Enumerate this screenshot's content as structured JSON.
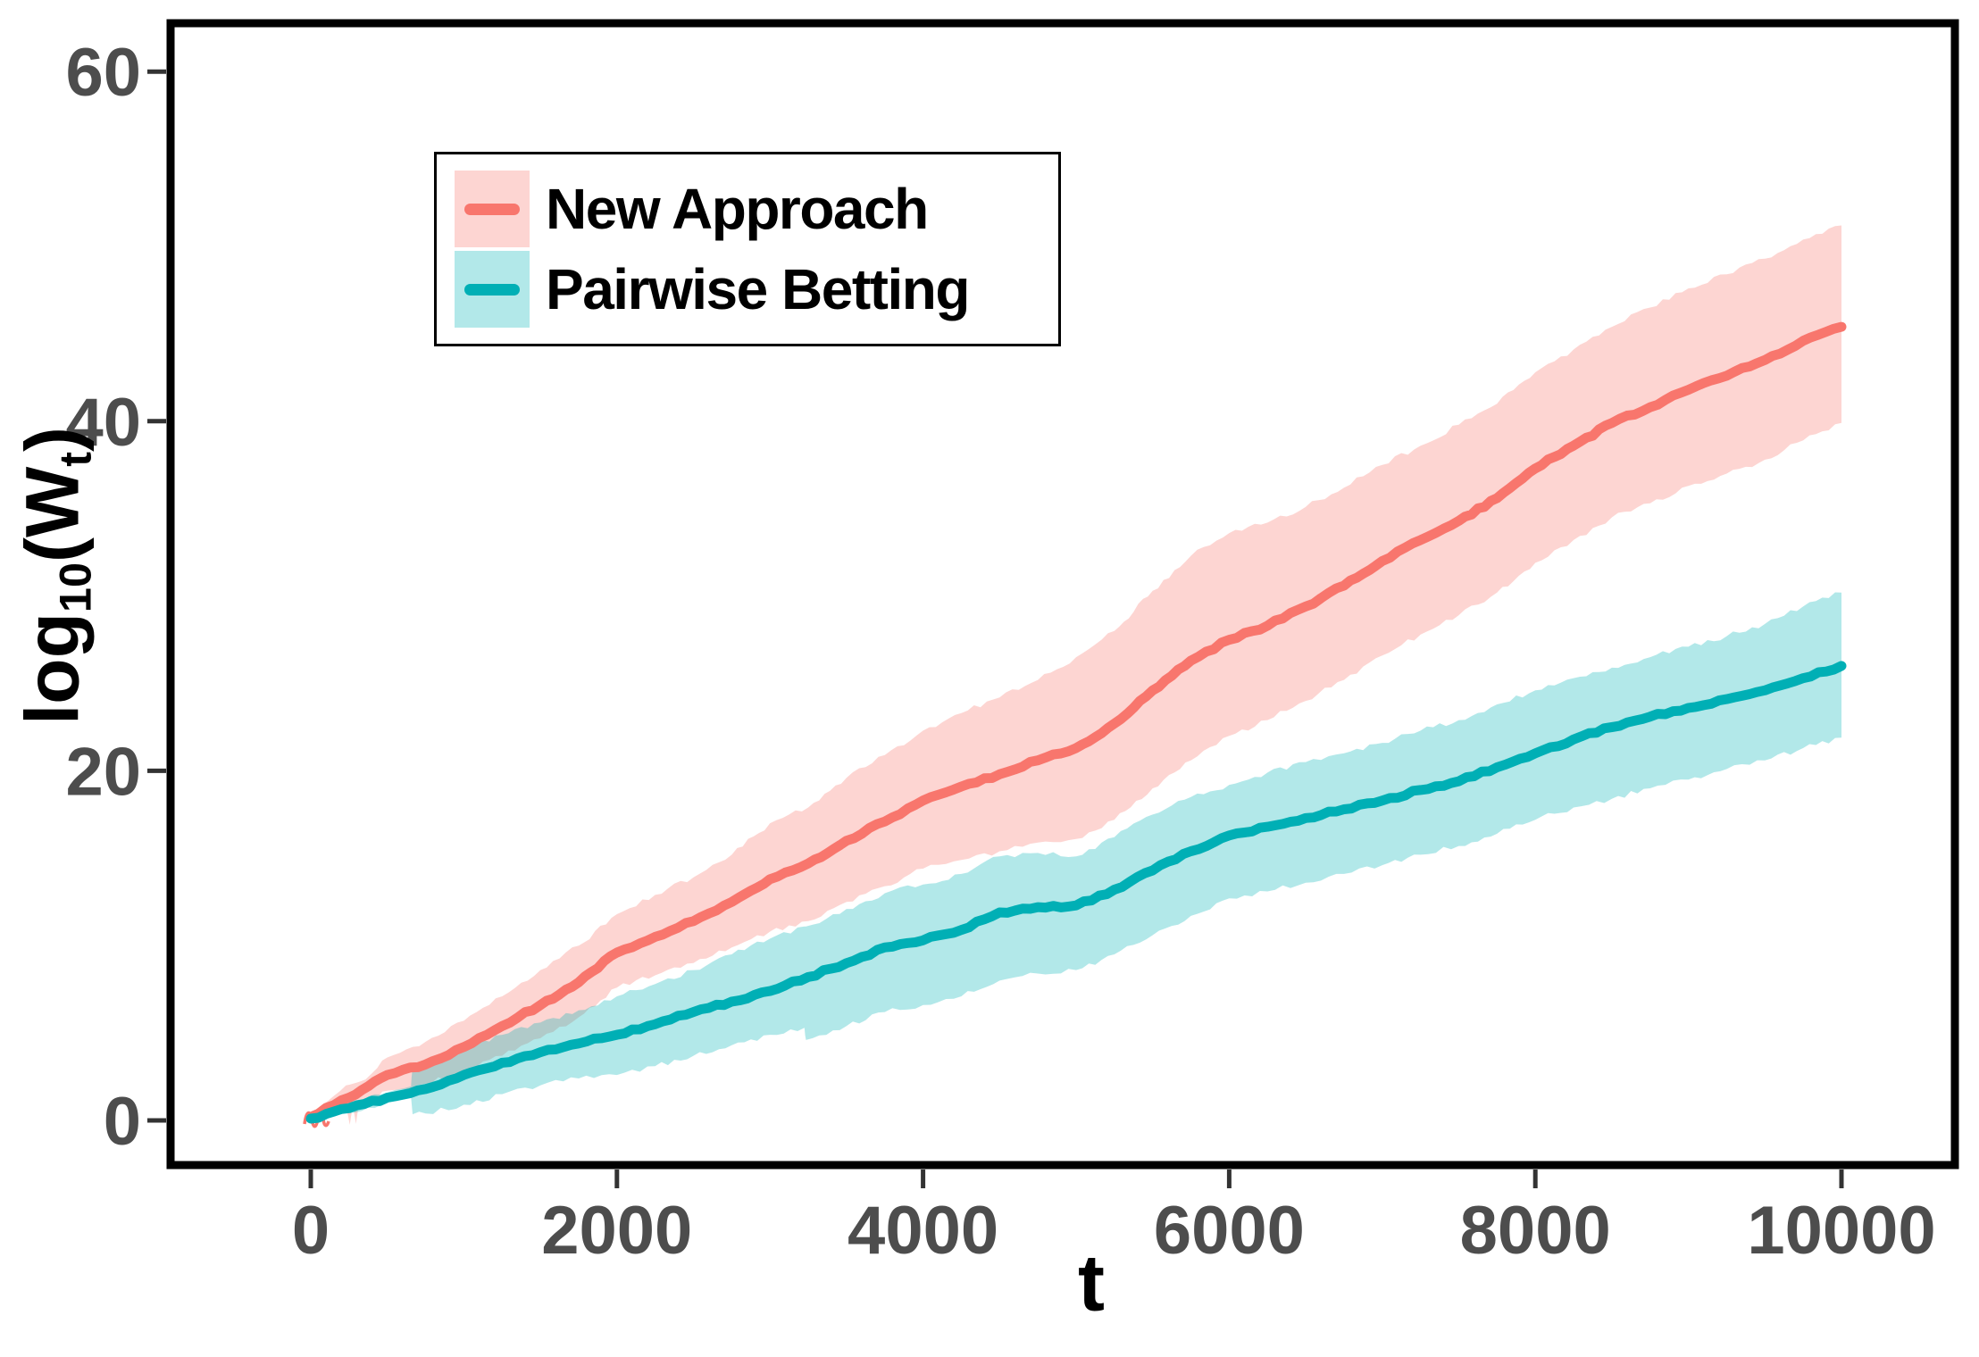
{
  "figure": {
    "background": "#ffffff"
  },
  "axes": {
    "x": {
      "title": "t",
      "tick_labels": [
        "0",
        "2000",
        "4000",
        "6000",
        "8000",
        "10000"
      ],
      "tick_values": [
        0,
        2000,
        4000,
        6000,
        8000,
        10000
      ]
    },
    "y": {
      "title": "log10(Wt)",
      "title_parts": {
        "pre": "log",
        "sub": "10",
        "mid": "(W",
        "sub2": "t",
        "post": ")"
      },
      "tick_labels": [
        "0",
        "20",
        "40",
        "60"
      ],
      "tick_values": [
        0,
        20,
        40,
        60
      ]
    }
  },
  "legend": {
    "position": "top-left-inset",
    "border_color": "#000000",
    "background": "#ffffff"
  },
  "chart_data": {
    "type": "line",
    "title": "",
    "xlabel": "t",
    "ylabel": "log10(Wt)",
    "xlim": [
      0,
      10000
    ],
    "ylim": [
      0,
      60
    ],
    "grid": false,
    "legend_position": "top-left-inset",
    "tick_label_color": "#4d4d4d",
    "panel_border_color": "#000000",
    "series": [
      {
        "id": "new-approach",
        "name": "New Approach",
        "color": "#F8766D",
        "band_color": "rgba(248,118,109,0.31)",
        "t": [
          0,
          250,
          500,
          750,
          1000,
          1250,
          1500,
          1750,
          2000,
          2250,
          2500,
          2750,
          3000,
          3250,
          3500,
          3750,
          4000,
          4250,
          4500,
          4750,
          5000,
          5250,
          5500,
          5750,
          6000,
          6250,
          6500,
          6750,
          7000,
          7250,
          7500,
          7750,
          8000,
          8250,
          8500,
          8750,
          9000,
          9250,
          9500,
          9750,
          10000
        ],
        "mean": [
          0.2,
          1.3,
          2.6,
          3.2,
          4.2,
          5.4,
          6.6,
          7.9,
          9.6,
          10.5,
          11.4,
          12.5,
          13.8,
          14.7,
          16.0,
          17.1,
          18.3,
          19.1,
          19.8,
          20.6,
          21.3,
          22.7,
          24.6,
          26.3,
          27.5,
          28.3,
          29.4,
          30.6,
          32.0,
          33.2,
          34.3,
          35.6,
          37.3,
          38.6,
          39.9,
          40.8,
          41.8,
          42.6,
          43.5,
          44.6,
          45.4
        ],
        "band_t": [
          0,
          150,
          230,
          255,
          275,
          295,
          315,
          400,
          500,
          750,
          1000,
          1250,
          1500,
          1750,
          2000,
          2250,
          2500,
          2750,
          3000,
          3250,
          3500,
          3750,
          4000,
          4250,
          4500,
          4750,
          5000,
          5250,
          5500,
          5750,
          6000,
          6250,
          6500,
          6750,
          7000,
          7250,
          7500,
          7750,
          8000,
          8250,
          8500,
          8750,
          9000,
          9250,
          9500,
          9750,
          10000
        ],
        "band_lo": [
          0.05,
          0.4,
          0.7,
          -0.25,
          0.8,
          -0.2,
          0.85,
          1.1,
          1.7,
          2.1,
          2.8,
          3.7,
          4.7,
          5.9,
          7.6,
          8.3,
          9.0,
          9.9,
          10.8,
          11.4,
          12.5,
          13.4,
          14.4,
          14.9,
          15.4,
          15.9,
          16.1,
          17.2,
          19.0,
          20.6,
          22.0,
          22.9,
          24.0,
          25.2,
          26.6,
          27.8,
          28.9,
          30.2,
          31.9,
          33.2,
          34.5,
          35.3,
          36.3,
          37.0,
          37.8,
          38.9,
          39.9
        ],
        "band_hi": [
          0.4,
          1.4,
          2.0,
          2.05,
          2.1,
          2.15,
          2.2,
          2.7,
          3.6,
          4.5,
          5.7,
          7.1,
          8.6,
          10.0,
          11.8,
          12.9,
          13.9,
          15.2,
          17.0,
          17.9,
          19.6,
          20.9,
          22.3,
          23.3,
          24.2,
          25.2,
          26.5,
          28.0,
          30.3,
          32.3,
          33.6,
          34.2,
          35.1,
          36.2,
          37.5,
          38.6,
          39.8,
          41.0,
          42.8,
          44.1,
          45.4,
          46.5,
          47.6,
          48.4,
          49.3,
          50.4,
          51.2
        ]
      },
      {
        "id": "pairwise-betting",
        "name": "Pairwise Betting",
        "color": "#00AFB5",
        "band_color": "rgba(0,178,183,0.30)",
        "t": [
          0,
          250,
          500,
          750,
          1000,
          1250,
          1500,
          1750,
          2000,
          2250,
          2500,
          2750,
          3000,
          3250,
          3500,
          3750,
          4000,
          4250,
          4500,
          4750,
          5000,
          5250,
          5500,
          5750,
          6000,
          6250,
          6500,
          6750,
          7000,
          7250,
          7500,
          7750,
          8000,
          8250,
          8500,
          8750,
          9000,
          9250,
          9500,
          9750,
          10000
        ],
        "mean": [
          0.1,
          0.7,
          1.3,
          1.8,
          2.6,
          3.3,
          3.9,
          4.4,
          4.9,
          5.5,
          6.2,
          6.8,
          7.4,
          8.2,
          9.0,
          9.9,
          10.3,
          10.9,
          11.9,
          12.2,
          12.3,
          13.2,
          14.3,
          15.4,
          16.3,
          16.8,
          17.3,
          17.8,
          18.3,
          18.9,
          19.4,
          20.2,
          21.0,
          21.8,
          22.5,
          23.1,
          23.6,
          24.1,
          24.6,
          25.3,
          26.0
        ],
        "band_t": [
          0,
          250,
          500,
          655,
          665,
          750,
          1000,
          1250,
          1500,
          1750,
          2000,
          2250,
          2500,
          2750,
          3000,
          3225,
          3235,
          3500,
          3750,
          4000,
          4250,
          4500,
          4750,
          5000,
          5250,
          5500,
          5750,
          6000,
          6250,
          6500,
          6750,
          7000,
          7250,
          7500,
          7750,
          8000,
          8250,
          8500,
          8750,
          9000,
          9250,
          9500,
          9750,
          10000
        ],
        "band_lo": [
          0.0,
          0.45,
          1.05,
          1.3,
          0.35,
          0.4,
          0.9,
          1.5,
          2.0,
          2.4,
          2.6,
          3.1,
          3.7,
          4.3,
          4.9,
          5.3,
          4.6,
          5.4,
          6.2,
          6.6,
          7.1,
          8.0,
          8.4,
          8.6,
          9.5,
          10.6,
          11.7,
          12.7,
          13.1,
          13.6,
          14.1,
          14.6,
          15.2,
          15.7,
          16.4,
          17.2,
          17.9,
          18.4,
          19.0,
          19.5,
          20.1,
          20.6,
          21.3,
          21.9
        ],
        "band_hi": [
          0.25,
          0.95,
          1.6,
          1.95,
          3.1,
          3.3,
          4.1,
          4.9,
          5.6,
          6.3,
          7.1,
          7.8,
          8.6,
          9.5,
          10.4,
          11.1,
          11.1,
          12.1,
          13.0,
          13.5,
          14.1,
          15.1,
          15.3,
          15.1,
          16.2,
          17.5,
          18.5,
          19.2,
          19.9,
          20.5,
          21.0,
          21.6,
          22.3,
          22.9,
          23.8,
          24.6,
          25.3,
          25.9,
          26.5,
          27.1,
          27.7,
          28.4,
          29.4,
          30.2
        ]
      }
    ]
  }
}
